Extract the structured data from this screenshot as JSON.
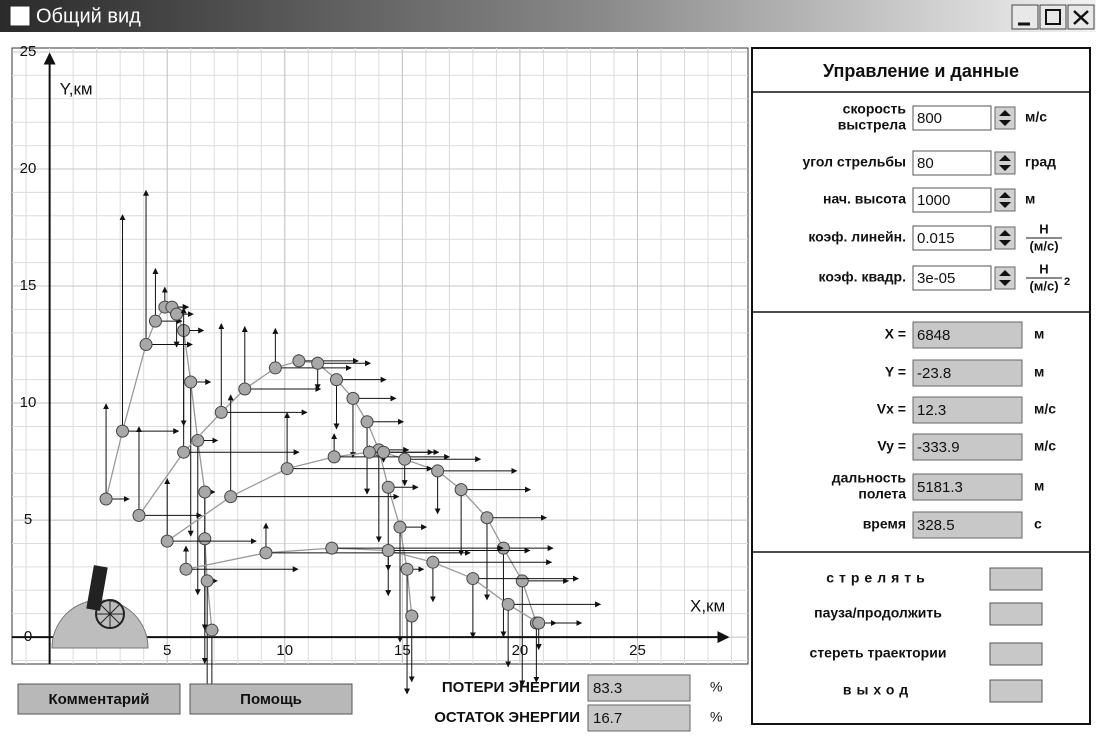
{
  "window": {
    "title": "Общий вид"
  },
  "plot": {
    "type": "line",
    "x_label": "X,км",
    "y_label": "Y,км",
    "xlim": [
      -1.6,
      29.7
    ],
    "ylim": [
      -1.15,
      25.17
    ],
    "xticks": [
      5,
      10,
      15,
      20,
      25
    ],
    "yticks": [
      0,
      5,
      10,
      15,
      20,
      25
    ],
    "grid": true,
    "series": [
      {
        "x": [
          2.4,
          3.1,
          4.1,
          4.5,
          4.9,
          5.2,
          5.4,
          5.7,
          6.0,
          6.3,
          6.6,
          6.6,
          6.7,
          6.9
        ],
        "y": [
          5.9,
          8.8,
          12.5,
          13.5,
          14.1,
          14.1,
          13.8,
          13.1,
          10.9,
          8.4,
          6.2,
          4.2,
          2.4,
          0.3
        ]
      },
      {
        "x": [
          3.8,
          5.7,
          7.3,
          8.3,
          9.6,
          10.6,
          11.4,
          12.2,
          12.9,
          13.5,
          14.0,
          14.4,
          14.9,
          15.2,
          15.4
        ],
        "y": [
          5.2,
          7.9,
          9.6,
          10.6,
          11.5,
          11.8,
          11.7,
          11.0,
          10.2,
          9.2,
          8.0,
          6.4,
          4.7,
          2.9,
          0.9
        ]
      },
      {
        "x": [
          5.0,
          7.7,
          10.1,
          12.1,
          13.6,
          14.2,
          15.1,
          16.5,
          17.5,
          18.6,
          19.3,
          20.1,
          20.7
        ],
        "y": [
          4.1,
          6.0,
          7.2,
          7.7,
          7.9,
          7.9,
          7.6,
          7.1,
          6.3,
          5.1,
          3.8,
          2.4,
          0.6
        ]
      },
      {
        "x": [
          5.8,
          9.2,
          12.0,
          14.4,
          16.3,
          18.0,
          19.5,
          20.8
        ],
        "y": [
          2.9,
          3.6,
          3.8,
          3.7,
          3.2,
          2.5,
          1.4,
          0.6
        ]
      }
    ]
  },
  "controls": {
    "title": "Управление и данные",
    "inputs": [
      {
        "label": [
          "скорость",
          "выстрела"
        ],
        "value": 800,
        "unit": "м/с"
      },
      {
        "label": [
          "угол стрельбы"
        ],
        "value": 80,
        "unit": "град"
      },
      {
        "label": [
          "нач. высота"
        ],
        "value": 1000,
        "unit": "м"
      },
      {
        "label": [
          "коэф. линейн."
        ],
        "value": 0.015,
        "unit": {
          "numerator": "Н",
          "denominator": "(м/с)"
        }
      },
      {
        "label": [
          "коэф. квадр."
        ],
        "value": "3e-05",
        "unit": {
          "numerator": "Н",
          "denominator": "(м/с)",
          "exponent": 2
        }
      }
    ],
    "outputs": [
      {
        "label": [
          "X ="
        ],
        "value": 6848,
        "unit": "м"
      },
      {
        "label": [
          "Y ="
        ],
        "value": -23.8,
        "unit": "м"
      },
      {
        "label": [
          "Vx ="
        ],
        "value": 12.3,
        "unit": "м/с"
      },
      {
        "label": [
          "Vy ="
        ],
        "value": -333.9,
        "unit": "м/с"
      },
      {
        "label": [
          "дальность",
          "полета"
        ],
        "value": 5181.3,
        "unit": "м"
      },
      {
        "label": [
          "время"
        ],
        "value": 328.5,
        "unit": "с"
      }
    ],
    "buttons": [
      "стрелять",
      "пауза/продолжить",
      "стереть траектории",
      "выход"
    ]
  },
  "bottom": {
    "buttons": [
      "Комментарий",
      "Помощь"
    ],
    "energy": [
      {
        "label": "ПОТЕРИ ЭНЕРГИИ",
        "value": 83.3,
        "unit": "%"
      },
      {
        "label": "ОСТАТОК ЭНЕРГИИ",
        "value": 16.7,
        "unit": "%"
      }
    ]
  }
}
